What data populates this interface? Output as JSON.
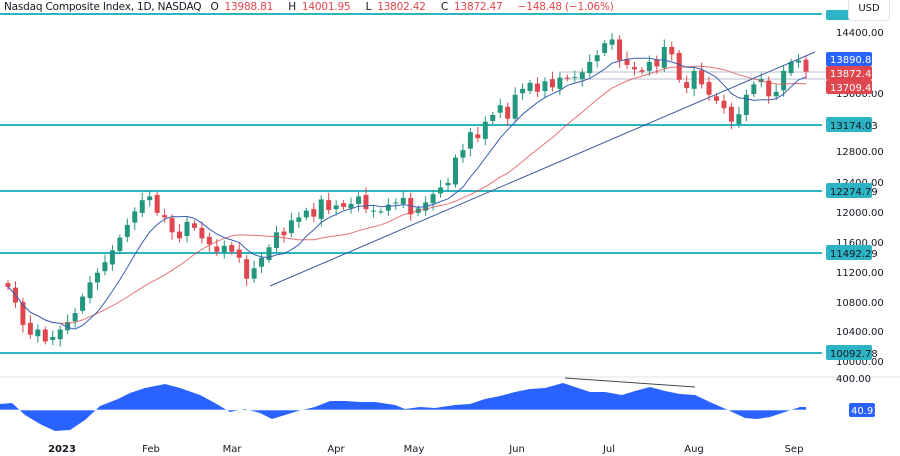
{
  "header": {
    "symbol": "Nasdaq Composite Index, 1D, NASDAQ",
    "open_label": "O",
    "open": "13988.81",
    "high_label": "H",
    "high": "14001.95",
    "low_label": "L",
    "low": "13802.42",
    "close_label": "C",
    "close": "13872.47",
    "change": "−148.48 (−1.06%)"
  },
  "currency": "USD",
  "colors": {
    "up": "#26a69a",
    "up_body": "#22977e",
    "down": "#e0464e",
    "level": "#2cb4c4",
    "ma_fast": "#3b5fb0",
    "ma_slow": "#e0464e",
    "trendline": "#3c5a9a",
    "osc": "#2962ff"
  },
  "chart_data": [
    {
      "type": "candlestick",
      "title": "Nasdaq Composite Index, 1D, NASDAQ",
      "xlabel": "",
      "ylabel": "USD",
      "ylim": [
        9950,
        14550
      ],
      "x_ticks": [
        "2023",
        "Feb",
        "Mar",
        "Apr",
        "May",
        "Jun",
        "Jul",
        "Aug",
        "Sep"
      ],
      "y_ticks": [
        "14400.00",
        "13600.00",
        "12800.00",
        "12400.00",
        "12000.00",
        "11600.00",
        "11200.00",
        "10800.00",
        "10400.00",
        "10000.00"
      ],
      "horizontal_levels": [
        14517.0,
        13174.03,
        12274.79,
        11492.29,
        10092.78
      ],
      "price_labels": [
        {
          "value": "13890.85",
          "color": "#2962ff",
          "name": "ma-fast"
        },
        {
          "value": "13872.47",
          "color": "#e0464e",
          "name": "last-price"
        },
        {
          "value": "13709.45",
          "color": "#e0464e",
          "name": "ma-slow"
        }
      ],
      "level_labels": [
        "13174.03",
        "12274.79",
        "11492.29",
        "10092.78"
      ],
      "closes": [
        10990,
        10780,
        10480,
        10350,
        10420,
        10260,
        10320,
        10420,
        10520,
        10640,
        10860,
        11050,
        11180,
        11320,
        11480,
        11650,
        11820,
        12000,
        12150,
        12200,
        11980,
        11920,
        11720,
        11640,
        11860,
        11780,
        11640,
        11560,
        11460,
        11540,
        11460,
        11380,
        11100,
        11240,
        11380,
        11520,
        11720,
        11680,
        11880,
        11920,
        12010,
        11930,
        12160,
        12020,
        12080,
        12060,
        12100,
        12200,
        12030,
        12010,
        12000,
        12090,
        12120,
        12180,
        11960,
        12040,
        12120,
        12230,
        12320,
        12380,
        12720,
        12820,
        13060,
        12980,
        13200,
        13290,
        13420,
        13240,
        13560,
        13640,
        13720,
        13600,
        13740,
        13660,
        13790,
        13780,
        13800,
        13860,
        14000,
        14090,
        14250,
        14300,
        14020,
        13960,
        13900,
        13870,
        14000,
        13940,
        14200,
        14100,
        13760,
        13650,
        13880,
        13700,
        13560,
        13480,
        13380,
        13200,
        13300,
        13560,
        13700,
        13770,
        13540,
        13600,
        13880,
        14000,
        14020,
        13870
      ],
      "trendline": {
        "from": [
          270,
          286
        ],
        "to": [
          815,
          52
        ]
      },
      "oscillator": {
        "label": "40.93",
        "axis_tick": "400.00",
        "zero_y": 410
      }
    }
  ]
}
